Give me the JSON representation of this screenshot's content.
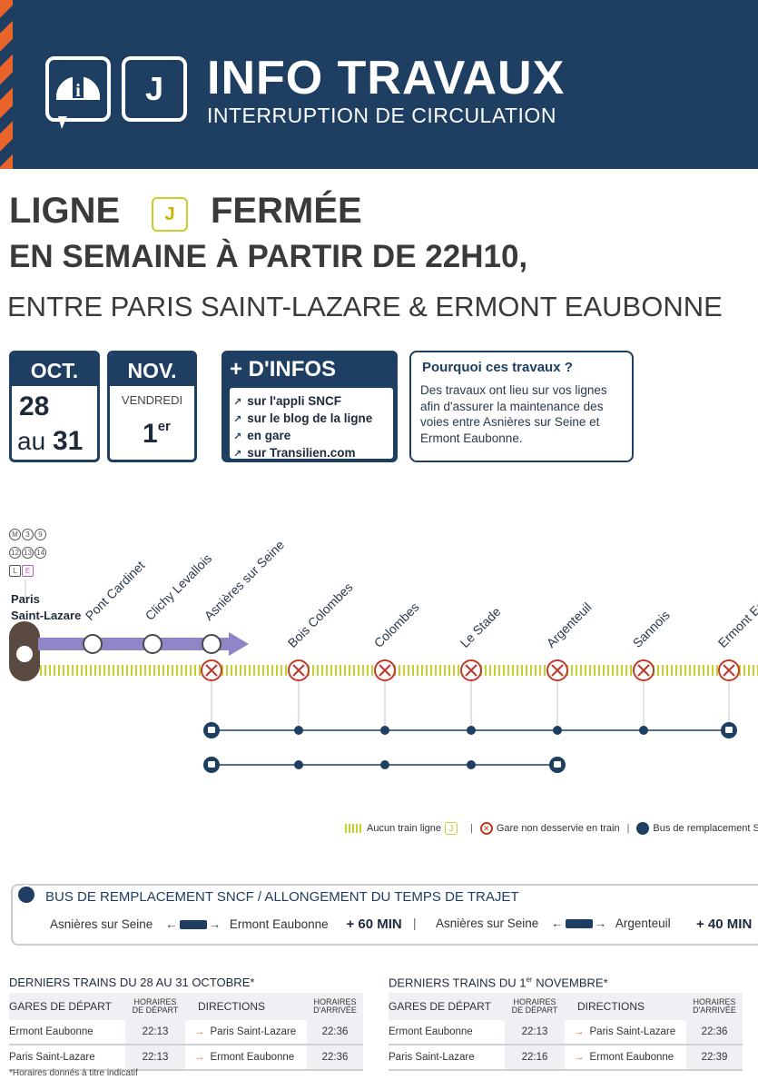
{
  "header": {
    "title": "INFO TRAVAUX",
    "subtitle": "INTERRUPTION DE CIRCULATION",
    "line_badge": "J",
    "colors": {
      "navy": "#1e3e62",
      "orange": "#e8642a",
      "line_j": "#c7d12e",
      "red": "#c0392b"
    }
  },
  "headline": {
    "line_prefix": "LIGNE",
    "line_badge": "J",
    "line_suffix": "FERMÉE",
    "when": "EN SEMAINE À PARTIR DE 22H10,",
    "where": "ENTRE PARIS SAINT-LAZARE & ERMONT EAUBONNE"
  },
  "dates": {
    "oct": {
      "month": "OCT.",
      "from": "28",
      "to_prefix": "au",
      "to": "31"
    },
    "nov": {
      "month": "NOV.",
      "day_name": "VENDREDI",
      "day": "1",
      "day_sup": "er"
    }
  },
  "infos": {
    "title": "+ D'INFOS",
    "items": [
      "sur l'appli SNCF",
      "sur le blog de la ligne",
      "en gare",
      "sur Transilien.com"
    ]
  },
  "why": {
    "title": "Pourquoi ces travaux ?",
    "body": "Des travaux ont lieu sur vos lignes afin d'assurer la maintenance des voies entre Asnières sur Seine et Ermont Eaubonne."
  },
  "line_map": {
    "origin": {
      "name_line1": "Paris",
      "name_line2": "Saint-Lazare"
    },
    "connections": [
      "M",
      "3",
      "9",
      "12",
      "13",
      "14",
      "L",
      "E"
    ],
    "served_stations": [
      "Pont Cardinet",
      "Clichy Levallois",
      "Asnières sur Seine"
    ],
    "closed_stations": [
      "Asnières sur Seine",
      "Bois Colombes",
      "Colombes",
      "Le Stade",
      "Argenteuil",
      "Sannois",
      "Ermont Eaubonne"
    ]
  },
  "legend": {
    "no_train": "Aucun train ligne",
    "no_train_badge": "J",
    "not_served": "Gare non desservie en train",
    "bus": "Bus de remplacement SNCF"
  },
  "bus_info": {
    "title": "BUS DE REMPLACEMENT SNCF / ALLONGEMENT DU TEMPS DE TRAJET",
    "route1": {
      "from": "Asnières sur Seine",
      "to": "Ermont Eaubonne",
      "extra": "+ 60 MIN"
    },
    "route2": {
      "from": "Asnières sur Seine",
      "to": "Argenteuil",
      "extra": "+ 40 MIN"
    }
  },
  "tables": {
    "headers": {
      "gare": "GARES DE DÉPART",
      "dep_line1": "HORAIRES",
      "dep_line2": "DE DÉPART",
      "dir": "DIRECTIONS",
      "arr_line1": "HORAIRES",
      "arr_line2": "D'ARRIVÉE"
    },
    "oct": {
      "title": "DERNIERS TRAINS DU 28 AU 31 OCTOBRE*",
      "rows": [
        {
          "gare": "Ermont Eaubonne",
          "dep": "22:13",
          "dir": "Paris Saint-Lazare",
          "arr": "22:36"
        },
        {
          "gare": "Paris Saint-Lazare",
          "dep": "22:13",
          "dir": "Ermont Eaubonne",
          "arr": "22:36"
        }
      ]
    },
    "nov": {
      "title_prefix": "DERNIERS TRAINS DU 1",
      "title_sup": "er",
      "title_suffix": " NOVEMBRE*",
      "rows": [
        {
          "gare": "Ermont Eaubonne",
          "dep": "22:13",
          "dir": "Paris Saint-Lazare",
          "arr": "22:36"
        },
        {
          "gare": "Paris Saint-Lazare",
          "dep": "22:16",
          "dir": "Ermont Eaubonne",
          "arr": "22:39"
        }
      ]
    },
    "note": "*Horaires donnés à titre indicatif"
  }
}
